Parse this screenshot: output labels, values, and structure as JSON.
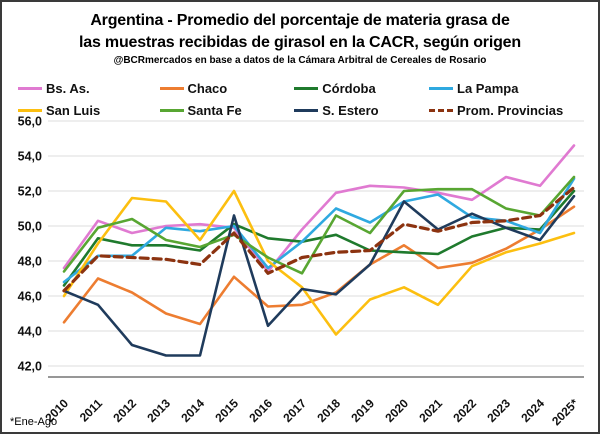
{
  "title": {
    "line1": "Argentina - Promedio del porcentaje de materia grasa de",
    "line2": "las muestras recibidas de girasol en la CACR, según origen",
    "subtitle": "@BCRmercados en base a datos de la Cámara Arbitral de Cereales de Rosario"
  },
  "footnote": "*Ene-Ago",
  "chart_data": {
    "type": "line",
    "title": "Argentina - Promedio del porcentaje de materia grasa de las muestras recibidas de girasol en la CACR, según origen",
    "subtitle": "@BCRmercados en base a datos de la Cámara Arbitral de Cereales de Rosario",
    "categories": [
      "2010",
      "2011",
      "2012",
      "2013",
      "2014",
      "2015",
      "2016",
      "2017",
      "2018",
      "2019",
      "2020",
      "2021",
      "2022",
      "2023",
      "2024",
      "2025*"
    ],
    "ylim": [
      42.0,
      56.0
    ],
    "ytick_step": 2.0,
    "ytick_labels": [
      "42,0",
      "44,0",
      "46,0",
      "48,0",
      "50,0",
      "52,0",
      "54,0",
      "56,0"
    ],
    "grid": true,
    "legend_position": "top",
    "footnote": "*Ene-Ago",
    "colors": {
      "gridline": "#dcdcdc",
      "axis": "#595959",
      "text": "#111111"
    },
    "series": [
      {
        "name": "Bs. As.",
        "color": "#e07ad1",
        "dash": null,
        "values": [
          47.6,
          50.3,
          49.6,
          50.0,
          50.1,
          49.9,
          47.4,
          49.8,
          51.9,
          52.3,
          52.2,
          51.9,
          51.5,
          52.8,
          52.3,
          54.6
        ]
      },
      {
        "name": "Chaco",
        "color": "#ed7d31",
        "dash": null,
        "values": [
          44.5,
          47.0,
          46.2,
          45.0,
          44.4,
          47.1,
          45.4,
          45.5,
          46.2,
          47.8,
          48.9,
          47.6,
          47.9,
          48.7,
          49.8,
          51.1
        ]
      },
      {
        "name": "Córdoba",
        "color": "#1f7a2d",
        "dash": null,
        "values": [
          46.6,
          49.3,
          48.9,
          48.9,
          48.6,
          50.1,
          49.3,
          49.1,
          49.5,
          48.6,
          48.5,
          48.4,
          49.4,
          49.9,
          49.8,
          52.0
        ]
      },
      {
        "name": "La Pampa",
        "color": "#2fa9e0",
        "dash": null,
        "values": [
          46.8,
          48.3,
          48.3,
          49.9,
          49.7,
          50.0,
          47.6,
          49.1,
          51.0,
          50.2,
          51.4,
          51.8,
          50.5,
          50.3,
          49.6,
          52.7
        ]
      },
      {
        "name": "San Luis",
        "color": "#fcbf10",
        "dash": null,
        "values": [
          46.0,
          49.0,
          51.6,
          51.4,
          49.2,
          52.0,
          48.0,
          46.5,
          43.8,
          45.8,
          46.5,
          45.5,
          47.7,
          48.5,
          49.0,
          49.6
        ]
      },
      {
        "name": "Santa Fe",
        "color": "#58a632",
        "dash": null,
        "values": [
          47.4,
          49.9,
          50.4,
          49.2,
          48.8,
          49.5,
          48.2,
          47.3,
          50.6,
          49.6,
          52.0,
          52.1,
          52.1,
          51.0,
          50.6,
          52.8
        ]
      },
      {
        "name": "S. Estero",
        "color": "#1f3b5c",
        "dash": null,
        "values": [
          46.3,
          45.5,
          43.2,
          42.6,
          42.6,
          50.6,
          44.3,
          46.4,
          46.1,
          47.8,
          51.4,
          49.8,
          50.7,
          49.9,
          49.2,
          51.7
        ]
      },
      {
        "name": "Prom. Provincias",
        "color": "#8c3310",
        "dash": "8 5",
        "values": [
          46.3,
          48.3,
          48.2,
          48.1,
          47.8,
          49.6,
          47.3,
          48.2,
          48.5,
          48.6,
          50.1,
          49.7,
          50.2,
          50.3,
          50.6,
          52.2
        ]
      }
    ]
  }
}
